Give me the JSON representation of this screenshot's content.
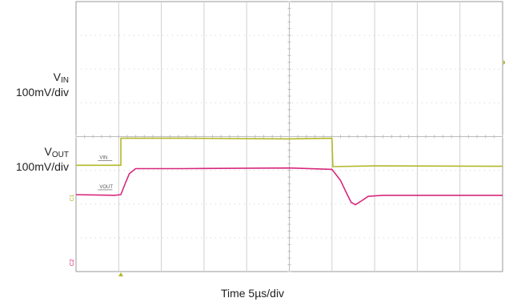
{
  "chart_data": {
    "type": "line",
    "title": "",
    "xlabel": "Time 5µs/div",
    "x_divisions": 10,
    "y_divisions": 8,
    "grid": true,
    "channels": [
      {
        "name": "VIN",
        "label_main": "V",
        "label_sub": "IN",
        "scale": "100mV/div",
        "color": "#b3b82a",
        "trace_tag": "VIN",
        "marker": "1",
        "points": [
          [
            0,
            3.15
          ],
          [
            1.05,
            3.15
          ],
          [
            1.05,
            3.95
          ],
          [
            2.5,
            3.95
          ],
          [
            5.0,
            3.93
          ],
          [
            6.0,
            3.95
          ],
          [
            6.02,
            3.11
          ],
          [
            7.0,
            3.13
          ],
          [
            10,
            3.12
          ]
        ]
      },
      {
        "name": "VOUT",
        "label_main": "V",
        "label_sub": "OUT",
        "scale": "100mV/div",
        "color": "#d8277c",
        "trace_tag": "VOUT",
        "marker": "2",
        "points": [
          [
            0,
            2.28
          ],
          [
            0.9,
            2.26
          ],
          [
            1.05,
            2.28
          ],
          [
            1.15,
            2.6
          ],
          [
            1.25,
            2.9
          ],
          [
            1.4,
            3.05
          ],
          [
            2.5,
            3.05
          ],
          [
            5.0,
            3.07
          ],
          [
            6.0,
            3.03
          ],
          [
            6.2,
            2.7
          ],
          [
            6.35,
            2.3
          ],
          [
            6.45,
            2.05
          ],
          [
            6.55,
            1.98
          ],
          [
            6.7,
            2.1
          ],
          [
            6.85,
            2.23
          ],
          [
            7.2,
            2.26
          ],
          [
            10,
            2.26
          ]
        ]
      }
    ]
  },
  "ch1_label": "V",
  "ch1_sub": "IN",
  "ch1_scale": "100mV/div",
  "ch2_label": "V",
  "ch2_sub": "OUT",
  "ch2_scale": "100mV/div",
  "x_axis_label": "Time 5µs/div"
}
